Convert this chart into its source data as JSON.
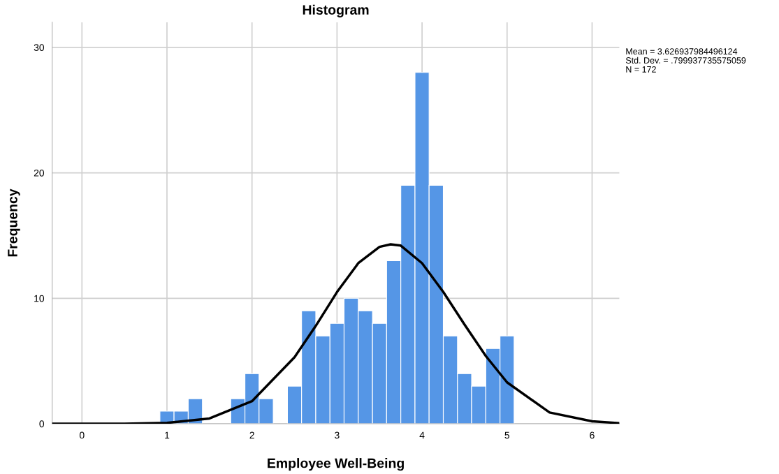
{
  "chart_data": {
    "type": "histogram",
    "title": "Histogram",
    "xlabel": "Employee Well-Being",
    "ylabel": "Frequency",
    "bins": [
      0.917,
      1.083,
      1.25,
      1.417,
      1.583,
      1.75,
      1.917,
      2.083,
      2.25,
      2.417,
      2.583,
      2.75,
      2.917,
      3.083,
      3.25,
      3.417,
      3.583,
      3.75,
      3.917,
      4.083,
      4.25,
      4.417,
      4.583,
      4.75,
      4.917,
      5.083
    ],
    "values": [
      1,
      1,
      2,
      0,
      0,
      2,
      4,
      2,
      0,
      3,
      9,
      7,
      8,
      10,
      9,
      8,
      13,
      19,
      28,
      19,
      7,
      4,
      3,
      6,
      7
    ],
    "color": "#5596e6",
    "series": [
      {
        "type": "line",
        "color": "#000000",
        "x": [
          -0.35,
          0,
          0.5,
          1,
          1.5,
          2,
          2.5,
          2.75,
          3,
          3.25,
          3.5,
          3.63,
          3.75,
          4,
          4.25,
          4.5,
          4.75,
          5,
          5.5,
          6,
          6.32
        ],
        "values": [
          0,
          0,
          0,
          0.07,
          0.42,
          1.8,
          5.3,
          7.8,
          10.5,
          12.8,
          14.1,
          14.3,
          14.2,
          12.8,
          10.5,
          7.9,
          5.4,
          3.3,
          0.9,
          0.2,
          0.05
        ]
      }
    ],
    "xlim": [
      -0.35,
      6.32
    ],
    "ylim": [
      0,
      32
    ],
    "xticks": [
      0,
      1,
      2,
      3,
      4,
      5,
      6
    ],
    "yticks": [
      0,
      10,
      20,
      30
    ],
    "grid": true,
    "annotations": [
      "Mean = 3.626937984496124",
      "Std. Dev. = .799937735575059",
      "N = 172"
    ]
  }
}
